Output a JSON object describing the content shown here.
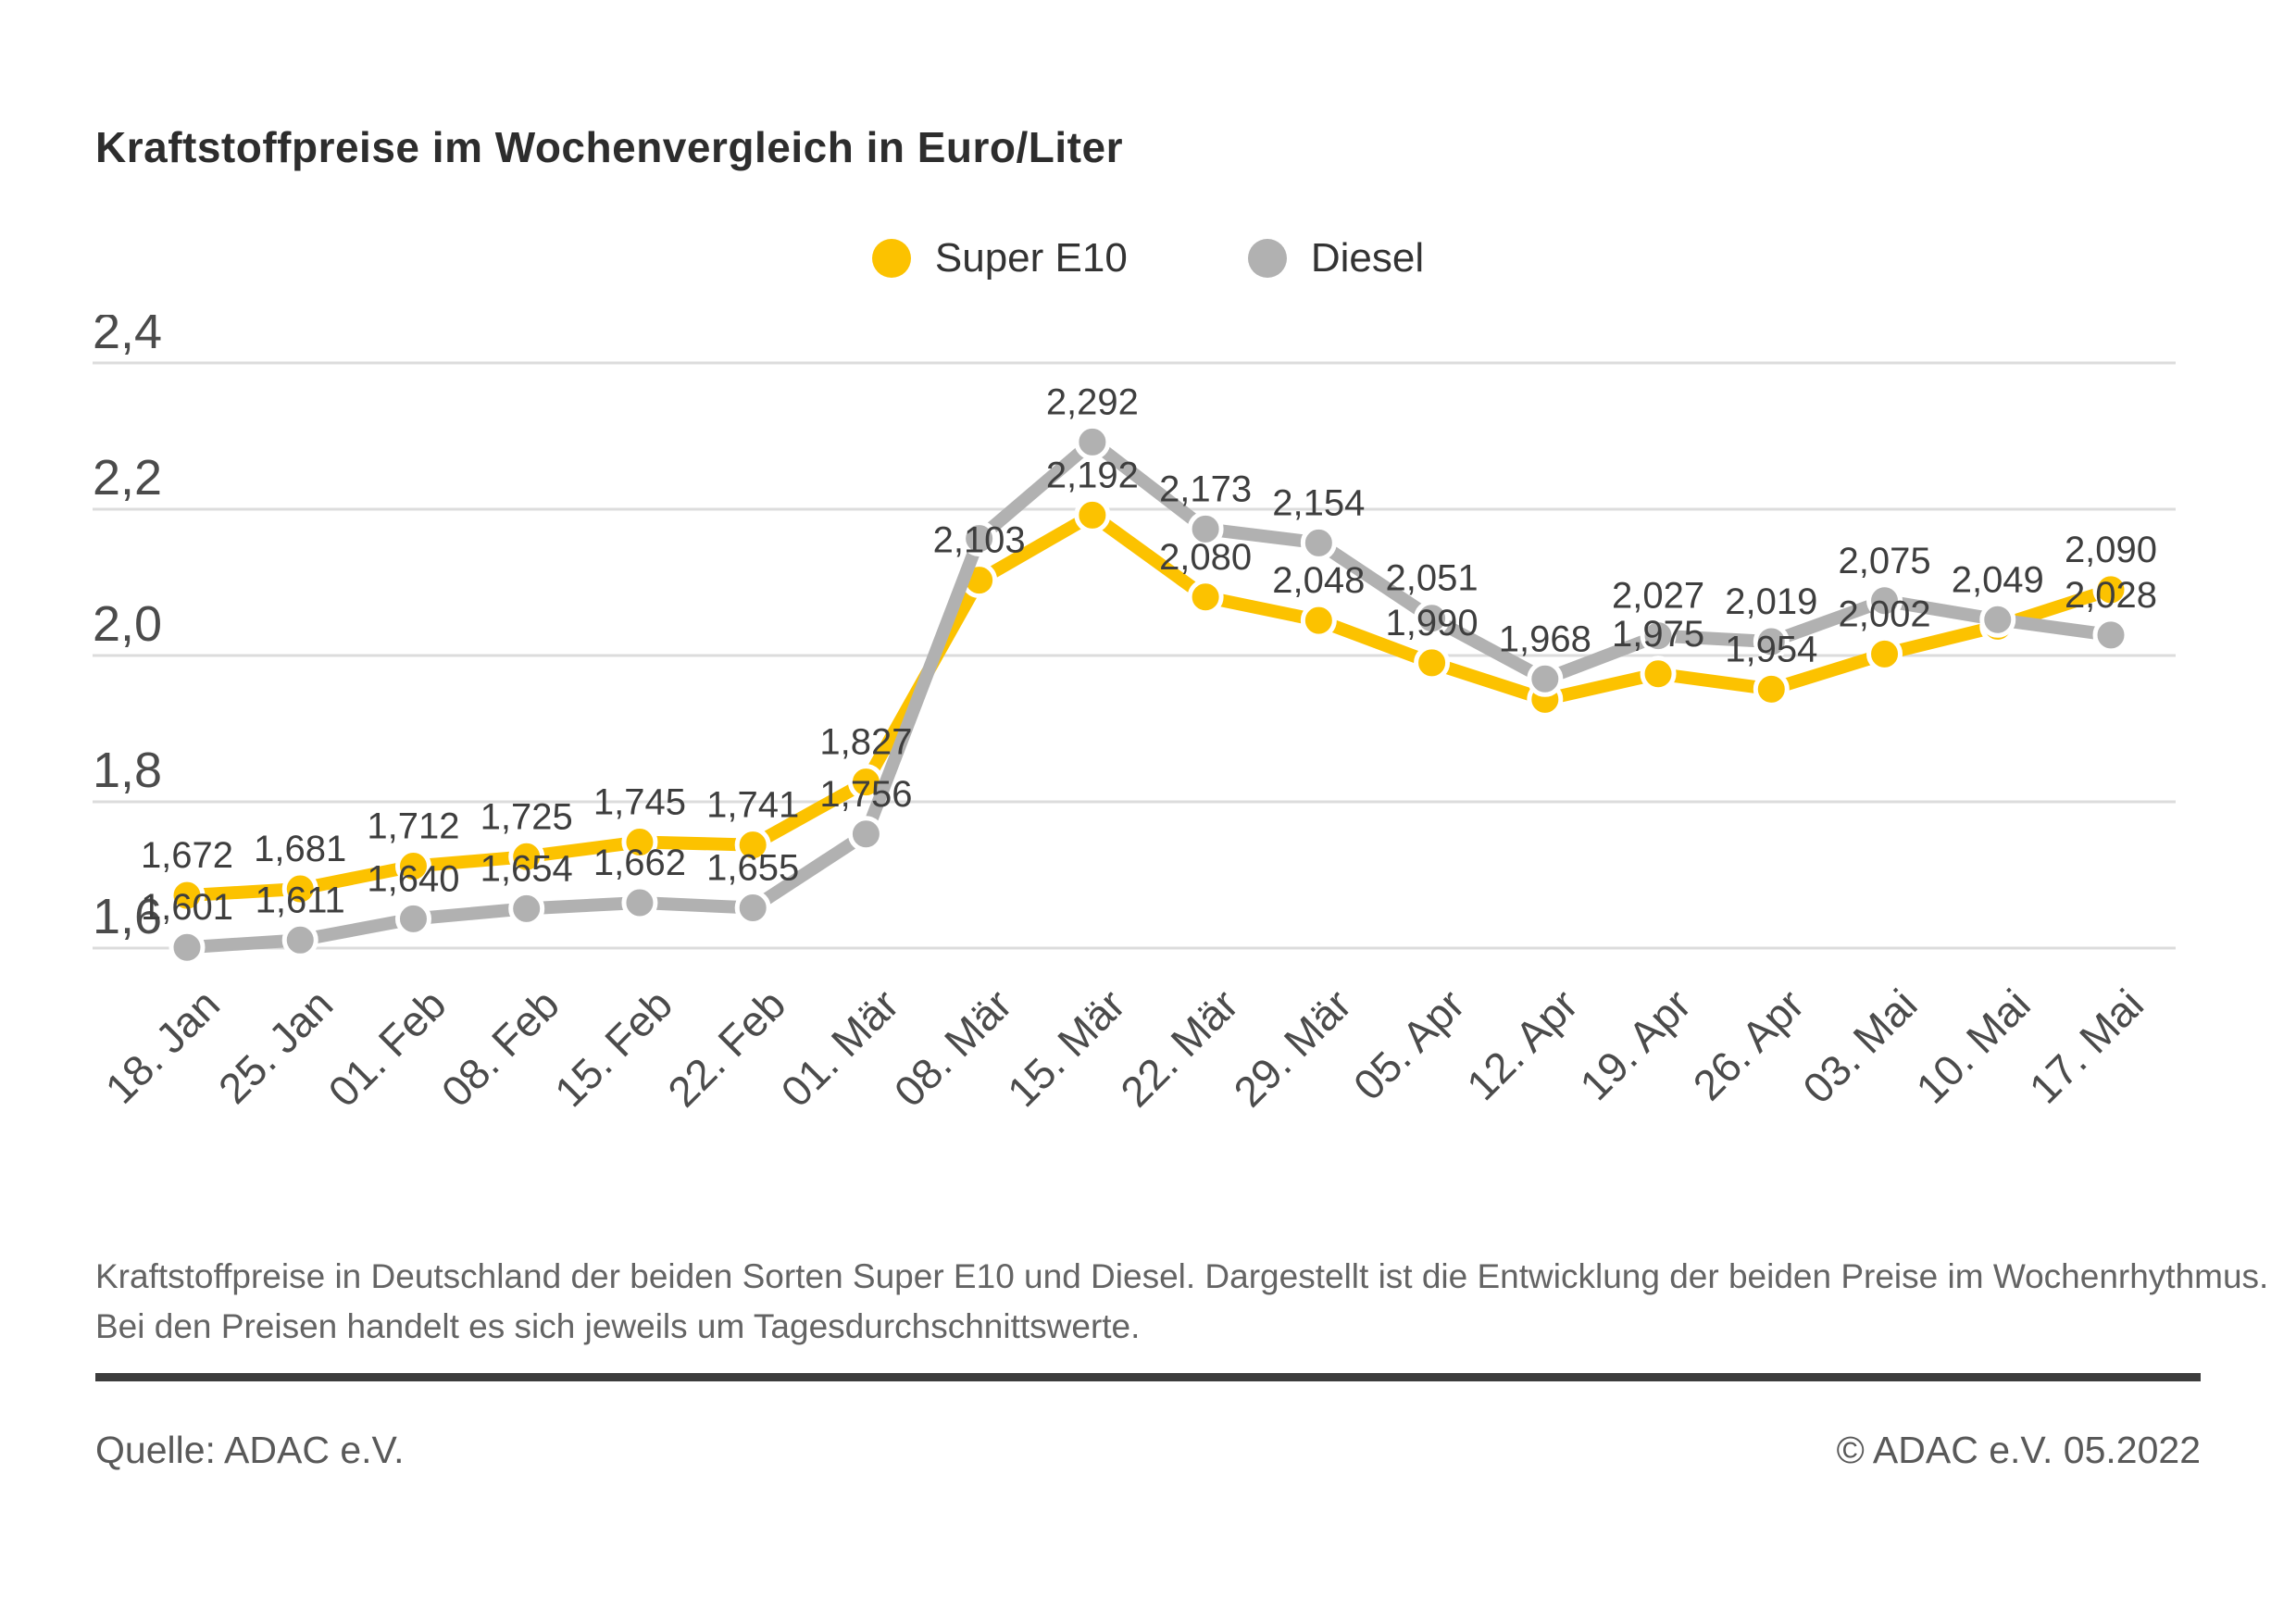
{
  "title": "Kraftstoffpreise im Wochenvergleich in Euro/Liter",
  "chart_data": {
    "type": "line",
    "title": "Kraftstoffpreise im Wochenvergleich in Euro/Liter",
    "xlabel": "",
    "ylabel": "Euro/Liter",
    "ylim": [
      1.6,
      2.4
    ],
    "grid": true,
    "legend_position": "top-center",
    "yticks": [
      "2,4",
      "2,2",
      "2,0",
      "1,8",
      "1,6"
    ],
    "ytick_values": [
      2.4,
      2.2,
      2.0,
      1.8,
      1.6
    ],
    "categories": [
      "18. Jan",
      "25. Jan",
      "01. Feb",
      "08. Feb",
      "15. Feb",
      "22. Feb",
      "01. Mär",
      "08. Mär",
      "15. Mär",
      "22. Mär",
      "29. Mär",
      "05. Apr",
      "12. Apr",
      "19. Apr",
      "26. Apr",
      "03. Mai",
      "10. Mai",
      "17. Mai"
    ],
    "series": [
      {
        "name": "Super E10",
        "color": "#fcc200",
        "values": [
          1.672,
          1.681,
          1.712,
          1.725,
          1.745,
          1.741,
          1.827,
          2.103,
          2.192,
          2.08,
          2.048,
          1.99,
          1.94,
          1.975,
          1.954,
          2.002,
          2.04,
          2.09
        ],
        "labels": [
          "1,672",
          "1,681",
          "1,712",
          "1,725",
          "1,745",
          "1,741",
          "1,827",
          "2,103",
          "2,192",
          "2,080",
          "2,048",
          "1,990",
          "",
          "1,975",
          "1,954",
          "2,002",
          "",
          "2,090"
        ]
      },
      {
        "name": "Diesel",
        "color": "#b1b1b1",
        "values": [
          1.601,
          1.611,
          1.64,
          1.654,
          1.662,
          1.655,
          1.756,
          2.16,
          2.292,
          2.173,
          2.154,
          2.051,
          1.968,
          2.027,
          2.019,
          2.075,
          2.049,
          2.028
        ],
        "labels": [
          "1,601",
          "1,611",
          "1,640",
          "1,654",
          "1,662",
          "1,655",
          "1,756",
          "",
          "2,292",
          "2,173",
          "2,154",
          "2,051",
          "1,968",
          "2,027",
          "2,019",
          "2,075",
          "2,049",
          "2,028"
        ]
      }
    ]
  },
  "description": "Kraftstoffpreise in Deutschland der beiden Sorten Super E10 und Diesel. Dargestellt ist die Entwicklung der beiden Preise im Wochenrhythmus. Bei den Preisen handelt es sich jeweils um Tagesdurchschnittswerte.",
  "footer": {
    "source": "Quelle: ADAC e.V.",
    "copyright": "© ADAC e.V. 05.2022"
  }
}
